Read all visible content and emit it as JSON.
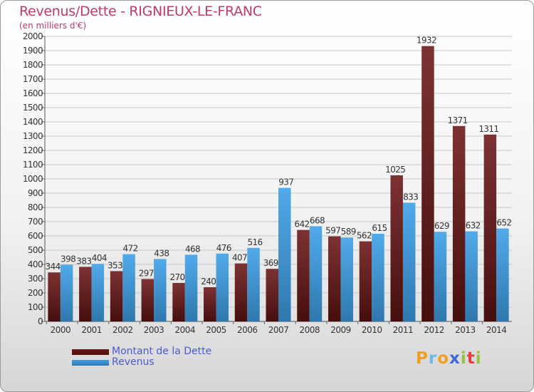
{
  "header": {
    "title": "Revenus/Dette - RIGNIEUX-LE-FRANC",
    "subtitle": "(en milliers d'€)"
  },
  "colors": {
    "debt": "#6b1616",
    "revenue": "#3ea0e8",
    "title": "#c0396b",
    "legend_text": "#4a5bd3"
  },
  "legend": [
    {
      "label": "Montant de la Dette",
      "color": "#6b1616"
    },
    {
      "label": "Revenus",
      "color": "#3ea0e8"
    }
  ],
  "brand": {
    "letters": [
      "P",
      "r",
      "o",
      "x",
      "i",
      "t",
      "i"
    ],
    "colors": [
      "#f0a020",
      "#6bb8e8",
      "#f0a020",
      "#3c6ad8",
      "#98c43a",
      "#e04040",
      "#98c43a"
    ]
  },
  "chart_data": {
    "type": "bar",
    "title": "Revenus/Dette - RIGNIEUX-LE-FRANC",
    "ylabel": "(en milliers d'€)",
    "categories": [
      "2000",
      "2001",
      "2002",
      "2003",
      "2004",
      "2005",
      "2006",
      "2007",
      "2008",
      "2009",
      "2010",
      "2011",
      "2012",
      "2013",
      "2014"
    ],
    "series": [
      {
        "name": "Montant de la Dette",
        "values": [
          344,
          383,
          353,
          297,
          270,
          240,
          407,
          369,
          642,
          597,
          562,
          1025,
          1932,
          1371,
          1311
        ]
      },
      {
        "name": "Revenus",
        "values": [
          398,
          404,
          472,
          438,
          468,
          476,
          516,
          937,
          668,
          589,
          615,
          833,
          629,
          632,
          652
        ]
      }
    ],
    "ylim": [
      0,
      2000
    ],
    "yticks": [
      0,
      100,
      200,
      300,
      400,
      500,
      600,
      700,
      800,
      900,
      1000,
      1100,
      1200,
      1300,
      1400,
      1500,
      1600,
      1700,
      1800,
      1900,
      2000
    ],
    "grid": true,
    "legend_position": "bottom-left"
  }
}
